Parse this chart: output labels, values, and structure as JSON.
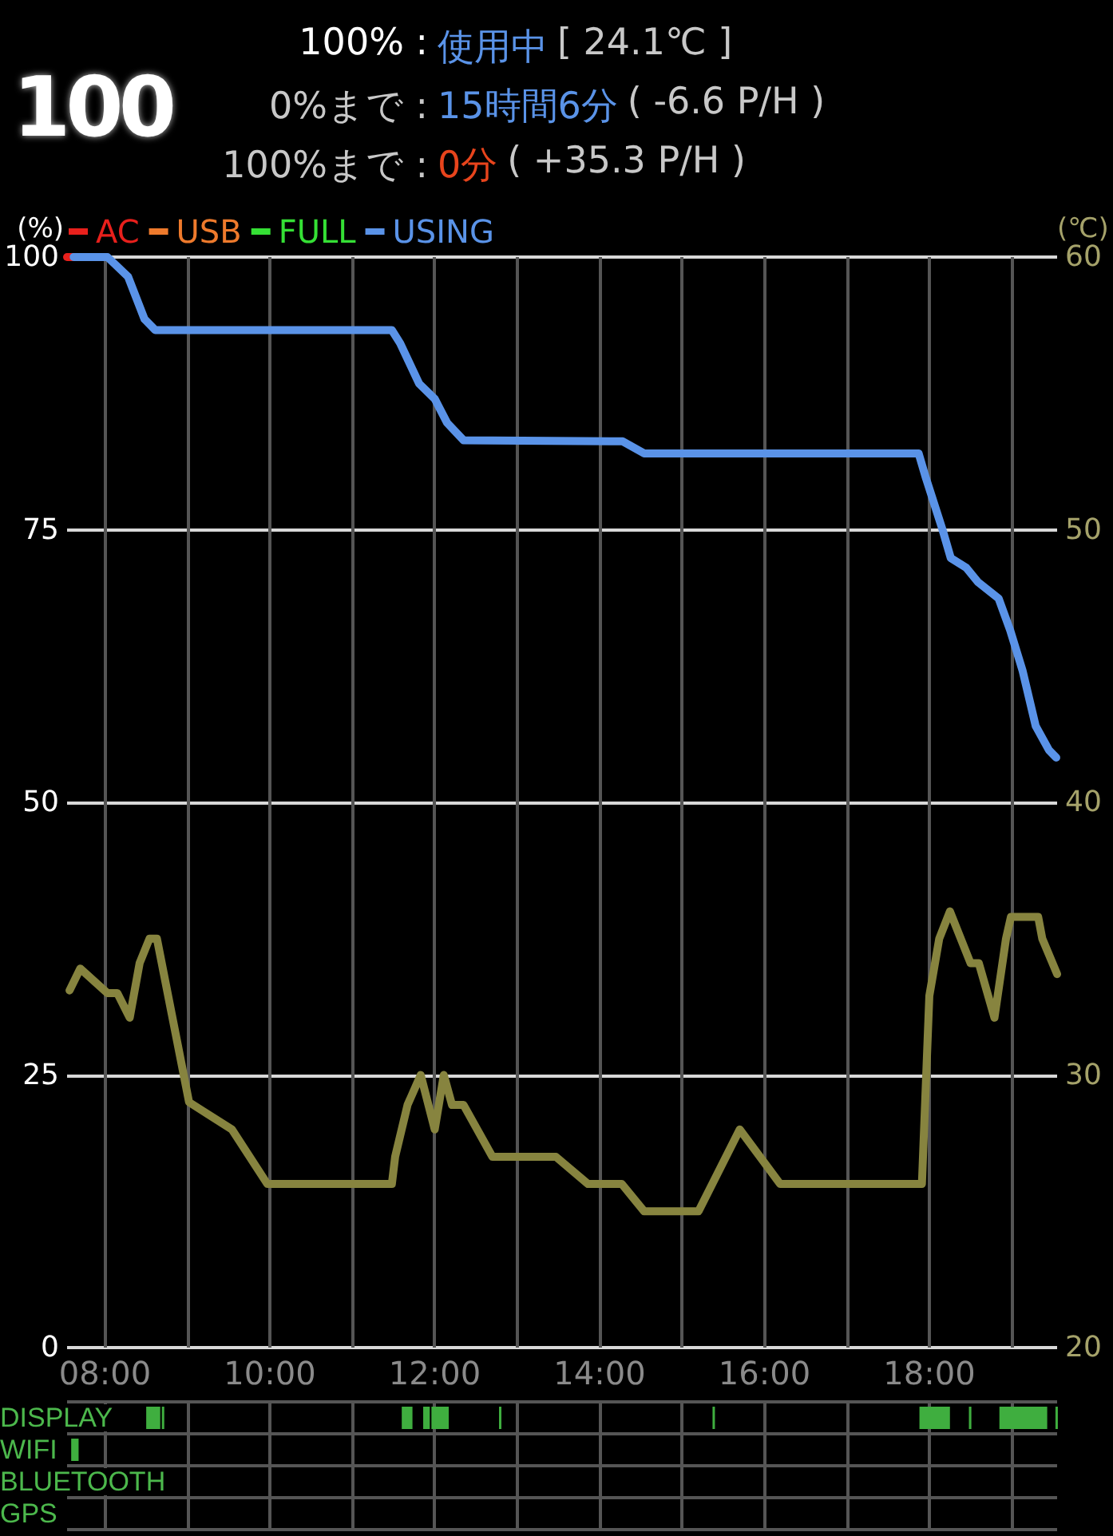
{
  "chart_data": [
    {
      "type": "line",
      "annotations": [
        "100",
        "100% :",
        "使用中",
        "[ 24.1℃ ]",
        "0%まで :",
        "15時間6分",
        "( -6.6 P/H )",
        "100%まで :",
        "0分",
        "( +35.3 P/H )"
      ],
      "ylabel": "(%)",
      "y2label": "(℃)",
      "legend": "top left",
      "grid": true,
      "marker": "none",
      "line_style": "solid",
      "tick_labels": "y",
      "xlim": [
        7.54,
        19.55
      ],
      "xticks": [
        {
          "value": 8,
          "label": null
        },
        {
          "value": 9,
          "label": null
        },
        {
          "value": 10,
          "label": null
        },
        {
          "value": 11,
          "label": null
        },
        {
          "value": 12,
          "label": null
        },
        {
          "value": 13,
          "label": null
        },
        {
          "value": 14,
          "label": null
        },
        {
          "value": 15,
          "label": null
        },
        {
          "value": 16,
          "label": null
        },
        {
          "value": 17,
          "label": null
        },
        {
          "value": 18,
          "label": null
        },
        {
          "value": 19,
          "label": null
        }
      ],
      "ylim": [
        0,
        100
      ],
      "yticks": [
        0,
        25,
        50,
        75,
        100
      ],
      "y2lim": [
        20,
        60
      ],
      "y2ticks": [
        20,
        30,
        40,
        50,
        60
      ],
      "series": [
        {
          "name": "AC",
          "color": "#e8201c",
          "x": [
            7.54,
            7.62
          ],
          "values": [
            100,
            100
          ]
        },
        {
          "name": "USB",
          "color": "#ee7a2c"
        },
        {
          "name": "FULL",
          "color": "#35e035"
        },
        {
          "name": "USING",
          "color": "#5a93e8",
          "x": [
            7.62,
            8.03,
            8.28,
            8.48,
            8.61,
            11.48,
            11.58,
            11.81,
            12.0,
            12.15,
            12.35,
            14.28,
            14.54,
            17.87,
            17.96,
            18.16,
            18.26,
            18.45,
            18.59,
            18.84,
            18.98,
            19.13,
            19.29,
            19.45,
            19.54
          ],
          "values": [
            100,
            100,
            98.2,
            94.3,
            93.3,
            93.3,
            92.1,
            88.4,
            87,
            84.8,
            83.2,
            83.1,
            82,
            82,
            79.7,
            75,
            72.4,
            71.5,
            70.2,
            68.7,
            65.8,
            62.1,
            57,
            54.8,
            54.1
          ]
        },
        {
          "color": "#87843f",
          "axis": "y2",
          "x": [
            7.57,
            7.7,
            8.03,
            8.15,
            8.3,
            8.42,
            8.54,
            8.63,
            9.02,
            9.54,
            9.97,
            11.48,
            11.52,
            11.67,
            11.83,
            12.0,
            12.11,
            12.21,
            12.35,
            12.7,
            13.47,
            13.86,
            14.27,
            14.54,
            15.2,
            15.7,
            16.19,
            17.91,
            18.0,
            18.12,
            18.25,
            18.5,
            18.6,
            18.79,
            18.93,
            18.99,
            19.12,
            19.32,
            19.37,
            19.55
          ],
          "values": [
            33.1,
            33.9,
            33.0,
            33.0,
            32.1,
            34.1,
            35.0,
            35.0,
            29.0,
            28.0,
            26.0,
            26.0,
            27.0,
            28.9,
            30.0,
            28.0,
            30.0,
            28.9,
            28.9,
            27.0,
            27.0,
            26.0,
            26.0,
            25.0,
            25.0,
            28.0,
            26.0,
            26.0,
            32.9,
            35.0,
            36.0,
            34.1,
            34.1,
            32.1,
            35.0,
            35.8,
            35.8,
            35.8,
            35.0,
            33.7
          ]
        }
      ]
    },
    {
      "type": "bar",
      "orientation": "horizontal",
      "categories": [
        "DISPLAY",
        "WIFI",
        "BLUETOOTH",
        "GPS"
      ],
      "grid": true,
      "xlim": [
        7.54,
        19.55
      ],
      "xticks": [
        {
          "value": 8,
          "label": "08:00"
        },
        {
          "value": 9,
          "label": null
        },
        {
          "value": 10,
          "label": "10:00"
        },
        {
          "value": 11,
          "label": null
        },
        {
          "value": 12,
          "label": "12:00"
        },
        {
          "value": 13,
          "label": null
        },
        {
          "value": 14,
          "label": "14:00"
        },
        {
          "value": 15,
          "label": null
        },
        {
          "value": 16,
          "label": "16:00"
        },
        {
          "value": 17,
          "label": null
        },
        {
          "value": 18,
          "label": "18:00"
        },
        {
          "value": 19,
          "label": null
        }
      ],
      "series": [
        {
          "color": "#3fae3f",
          "base": [
            8.5,
            7.59,
            null,
            null
          ],
          "values": [
            0.17,
            0.09,
            null,
            null
          ]
        },
        {
          "color": "#3fae3f",
          "base": [
            8.69,
            null,
            null,
            null
          ],
          "values": [
            0.02,
            null,
            null,
            null
          ]
        },
        {
          "color": "#3fae3f",
          "base": [
            11.6,
            null,
            null,
            null
          ],
          "values": [
            0.13,
            null,
            null,
            null
          ]
        },
        {
          "color": "#3fae3f",
          "base": [
            11.86,
            null,
            null,
            null
          ],
          "values": [
            0.08,
            null,
            null,
            null
          ]
        },
        {
          "color": "#3fae3f",
          "base": [
            11.96,
            null,
            null,
            null
          ],
          "values": [
            0.21,
            null,
            null,
            null
          ]
        },
        {
          "color": "#3fae3f",
          "base": [
            12.78,
            null,
            null,
            null
          ],
          "values": [
            0.02,
            null,
            null,
            null
          ]
        },
        {
          "color": "#3fae3f",
          "base": [
            15.37,
            null,
            null,
            null
          ],
          "values": [
            0.02,
            null,
            null,
            null
          ]
        },
        {
          "color": "#3fae3f",
          "base": [
            17.88,
            null,
            null,
            null
          ],
          "values": [
            0.37,
            null,
            null,
            null
          ]
        },
        {
          "color": "#3fae3f",
          "base": [
            18.48,
            null,
            null,
            null
          ],
          "values": [
            0.03,
            null,
            null,
            null
          ]
        },
        {
          "color": "#3fae3f",
          "base": [
            18.85,
            null,
            null,
            null
          ],
          "values": [
            0.58,
            null,
            null,
            null
          ]
        },
        {
          "color": "#3fae3f",
          "base": [
            19.53,
            null,
            null,
            null
          ],
          "values": [
            0.02,
            null,
            null,
            null
          ]
        }
      ]
    }
  ]
}
